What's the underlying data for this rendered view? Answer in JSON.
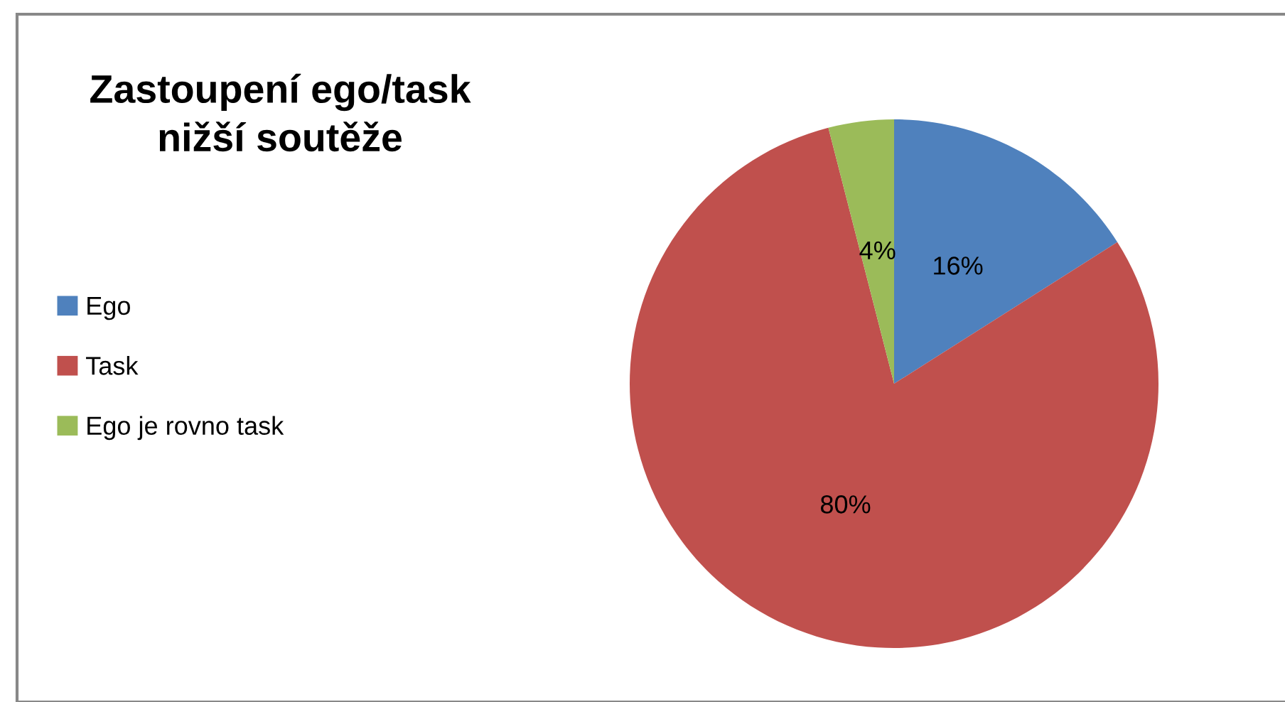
{
  "chart_data": {
    "type": "pie",
    "title": "Zastoupení ego/task\nnižší soutěže",
    "categories": [
      "Ego",
      "Task",
      "Ego je rovno task"
    ],
    "values": [
      16,
      80,
      4
    ],
    "colors": [
      "#4f81bd",
      "#c0504d",
      "#9bbb59"
    ],
    "value_labels": [
      "16%",
      "80%",
      "4%"
    ],
    "legend": "left"
  }
}
